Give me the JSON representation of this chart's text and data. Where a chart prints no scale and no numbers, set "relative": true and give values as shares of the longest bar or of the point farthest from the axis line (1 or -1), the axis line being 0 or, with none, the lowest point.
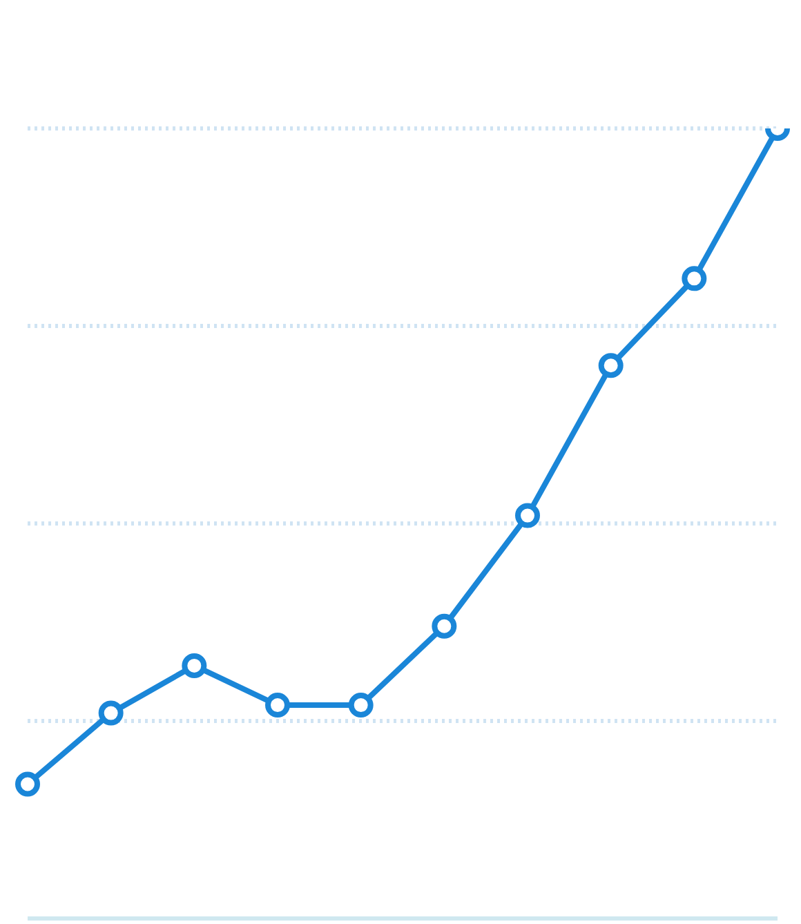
{
  "chart_data": {
    "type": "line",
    "relative": true,
    "categories": [
      null,
      null,
      null,
      null,
      null,
      null,
      null,
      null,
      null,
      null
    ],
    "series": [
      {
        "color": "#1a86d8",
        "values": [
          0.17,
          0.26,
          0.32,
          0.27,
          0.27,
          0.37,
          0.51,
          0.7,
          0.81,
          1
        ]
      }
    ],
    "grid": "y",
    "marker": "circle",
    "line_style": "solid",
    "legend": false
  }
}
